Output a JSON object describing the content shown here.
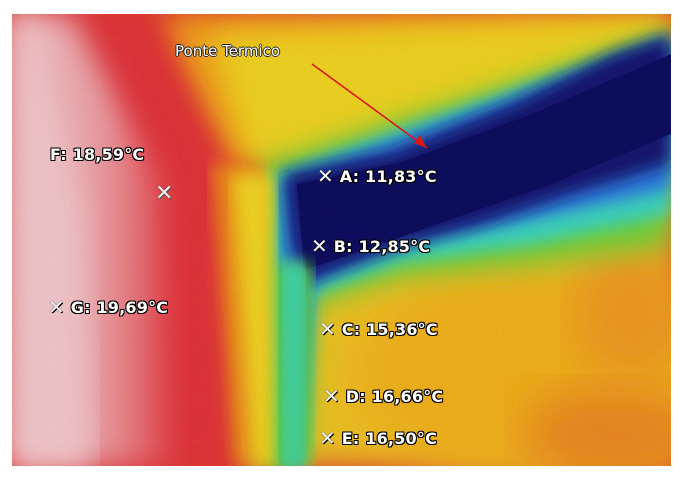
{
  "callout": {
    "label": "Ponte Termico"
  },
  "measurements": [
    {
      "id": "A",
      "reading": "A: 11,83°C"
    },
    {
      "id": "B",
      "reading": "B: 12,85°C"
    },
    {
      "id": "C",
      "reading": "C: 15,36°C"
    },
    {
      "id": "D",
      "reading": "D: 16,66°C"
    },
    {
      "id": "E",
      "reading": "E: 16,50°C"
    },
    {
      "id": "F",
      "reading": "F: 18,59°C"
    },
    {
      "id": "G",
      "reading": "G: 19,69°C"
    }
  ],
  "cross_symbol": "✕",
  "palette": {
    "cold": "#14146e",
    "cool": "#2a5cd8",
    "cyan": "#3ad6c8",
    "green": "#6ad23a",
    "yellow": "#f2d81e",
    "orange": "#ef8a1e",
    "red": "#e23236",
    "warm_pink": "#f0b8bc"
  },
  "icons": {
    "marker": "crosshair-x-icon",
    "arrow": "arrow-icon"
  }
}
